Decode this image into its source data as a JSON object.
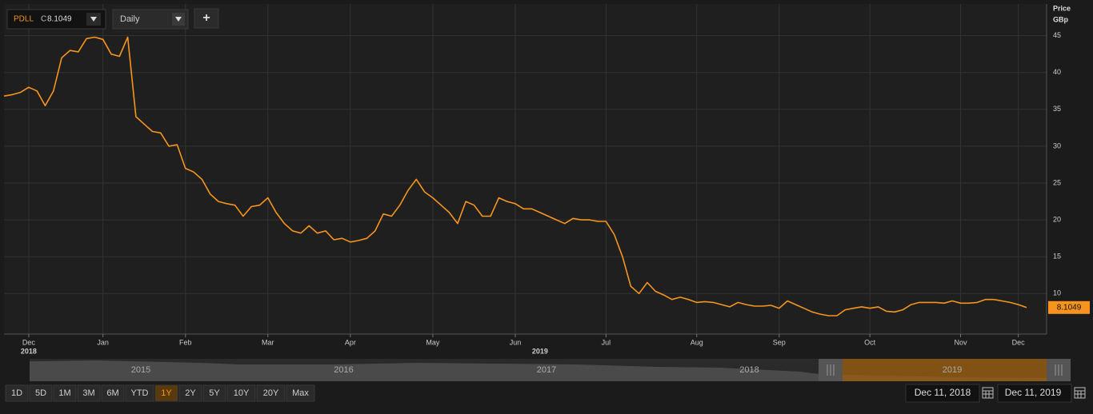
{
  "toolbar": {
    "symbol": "PDLL",
    "close_prefix": "C",
    "interval": "Daily",
    "add_button": "+"
  },
  "axis_title": {
    "line1": "Price",
    "line2": "GBp"
  },
  "navigator": {
    "years": [
      "2015",
      "2016",
      "2017",
      "2018",
      "2019"
    ]
  },
  "range_buttons": [
    "1D",
    "5D",
    "1M",
    "3M",
    "6M",
    "YTD",
    "1Y",
    "2Y",
    "5Y",
    "10Y",
    "20Y",
    "Max"
  ],
  "active_range": "1Y",
  "date_range": {
    "from": "Dec 11, 2018",
    "to": "Dec 11, 2019"
  },
  "chart_data": {
    "type": "line",
    "color": "#f7941d",
    "ylim": [
      4.5,
      49.3
    ],
    "yticks": [
      10,
      15,
      20,
      25,
      30,
      35,
      40,
      45
    ],
    "grid": true,
    "categories": [
      null,
      null,
      null,
      "Dec",
      null,
      null,
      null,
      null,
      null,
      null,
      null,
      null,
      "Jan",
      null,
      null,
      null,
      null,
      null,
      null,
      null,
      null,
      null,
      "Feb",
      null,
      null,
      null,
      null,
      null,
      null,
      null,
      null,
      null,
      "Mar",
      null,
      null,
      null,
      null,
      null,
      null,
      null,
      null,
      null,
      "Apr",
      null,
      null,
      null,
      null,
      null,
      null,
      null,
      null,
      null,
      "May",
      null,
      null,
      null,
      null,
      null,
      null,
      null,
      null,
      null,
      "Jun",
      null,
      null,
      null,
      null,
      null,
      null,
      null,
      null,
      null,
      null,
      "Jul",
      null,
      null,
      null,
      null,
      null,
      null,
      null,
      null,
      null,
      null,
      "Aug",
      null,
      null,
      null,
      null,
      null,
      null,
      null,
      null,
      null,
      "Sep",
      null,
      null,
      null,
      null,
      null,
      null,
      null,
      null,
      null,
      null,
      "Oct",
      null,
      null,
      null,
      null,
      null,
      null,
      null,
      null,
      null,
      null,
      "Nov",
      null,
      null,
      null,
      null,
      null,
      null,
      "Dec",
      null
    ],
    "year_labels": [
      null,
      null,
      null,
      "2018",
      null,
      null,
      null,
      null,
      null,
      null,
      null,
      null,
      null,
      null,
      null,
      null,
      null,
      null,
      null,
      null,
      null,
      null,
      null,
      null,
      null,
      null,
      null,
      null,
      null,
      null,
      null,
      null,
      null,
      null,
      null,
      null,
      null,
      null,
      null,
      null,
      null,
      null,
      null,
      null,
      null,
      null,
      null,
      null,
      null,
      null,
      null,
      null,
      null,
      null,
      null,
      null,
      null,
      null,
      null,
      null,
      null,
      null,
      null,
      null,
      null,
      "2019",
      null,
      null,
      null,
      null,
      null,
      null,
      null,
      null,
      null,
      null,
      null,
      null,
      null,
      null,
      null,
      null,
      null,
      null,
      null,
      null,
      null,
      null,
      null,
      null,
      null,
      null,
      null,
      null,
      null,
      null,
      null,
      null,
      null,
      null,
      null,
      null,
      null,
      null,
      null,
      null,
      null,
      null,
      null,
      null,
      null,
      null,
      null,
      null,
      null,
      null,
      null,
      null,
      null,
      null,
      null,
      null,
      null,
      null,
      null
    ],
    "values": [
      36.8,
      37.0,
      37.3,
      38.0,
      37.5,
      35.5,
      37.5,
      42.0,
      43.0,
      42.8,
      44.6,
      44.8,
      44.5,
      42.5,
      42.2,
      44.8,
      34.0,
      33.0,
      32.0,
      31.8,
      30.0,
      30.2,
      27.0,
      26.5,
      25.5,
      23.5,
      22.5,
      22.2,
      22.0,
      20.5,
      21.8,
      22.0,
      23.0,
      21.0,
      19.5,
      18.5,
      18.2,
      19.2,
      18.2,
      18.5,
      17.3,
      17.5,
      17.0,
      17.2,
      17.5,
      18.5,
      20.8,
      20.5,
      22.0,
      24.0,
      25.5,
      23.8,
      23.0,
      22.0,
      21.0,
      19.5,
      22.5,
      22.0,
      20.5,
      20.5,
      23.0,
      22.5,
      22.2,
      21.5,
      21.5,
      21.0,
      20.5,
      20.0,
      19.5,
      20.2,
      20.0,
      20.0,
      19.8,
      19.8,
      18.0,
      15.0,
      11.0,
      10.0,
      11.5,
      10.3,
      9.8,
      9.2,
      9.5,
      9.2,
      8.8,
      8.9,
      8.8,
      8.5,
      8.2,
      8.8,
      8.5,
      8.3,
      8.3,
      8.4,
      8.0,
      9.0,
      8.5,
      8.0,
      7.5,
      7.2,
      7.0,
      7.0,
      7.8,
      8.0,
      8.2,
      8.0,
      8.2,
      7.6,
      7.5,
      7.8,
      8.5,
      8.8,
      8.8,
      8.8,
      8.7,
      9.0,
      8.7,
      8.7,
      8.8,
      9.2,
      9.2,
      9.0,
      8.8,
      8.5,
      8.1049
    ]
  }
}
